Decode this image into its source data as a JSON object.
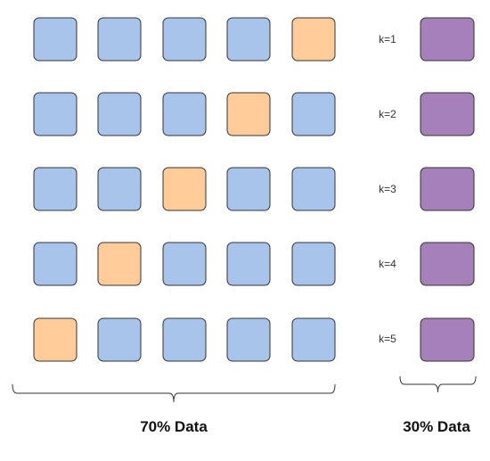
{
  "diagram": {
    "rows": [
      {
        "cells": [
          "train",
          "train",
          "train",
          "train",
          "test"
        ],
        "k_label": "k=1"
      },
      {
        "cells": [
          "train",
          "train",
          "train",
          "test",
          "train"
        ],
        "k_label": "k=2"
      },
      {
        "cells": [
          "train",
          "train",
          "test",
          "train",
          "train"
        ],
        "k_label": "k=3"
      },
      {
        "cells": [
          "train",
          "test",
          "train",
          "train",
          "train"
        ],
        "k_label": "k=4"
      },
      {
        "cells": [
          "test",
          "train",
          "train",
          "train",
          "train"
        ],
        "k_label": "k=5"
      }
    ],
    "captions": {
      "left": "70% Data",
      "right": "30% Data"
    },
    "colors": {
      "train_fill": "#a9c4eb",
      "test_fill": "#ffcc99",
      "holdout_fill": "#a680b8",
      "stroke": "#333333",
      "brace": "#333333"
    }
  }
}
